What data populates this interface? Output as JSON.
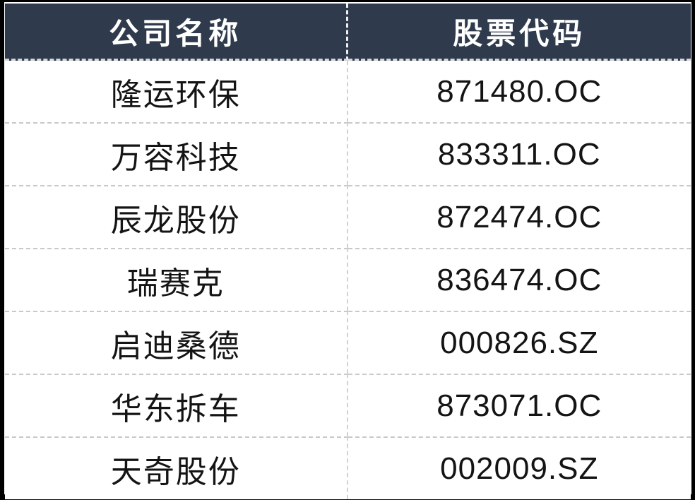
{
  "chart_data": {
    "type": "table",
    "columns": [
      "公司名称",
      "股票代码"
    ],
    "rows": [
      [
        "隆运环保",
        "871480.OC"
      ],
      [
        "万容科技",
        "833311.OC"
      ],
      [
        "辰龙股份",
        "872474.OC"
      ],
      [
        "瑞赛克",
        "836474.OC"
      ],
      [
        "启迪桑德",
        "000826.SZ"
      ],
      [
        "华东拆车",
        "873071.OC"
      ],
      [
        "天奇股份",
        "002009.SZ"
      ]
    ]
  },
  "colors": {
    "header_bg": "#2f3b4d",
    "header_text": "#ffffff",
    "body_text": "#141414",
    "row_divider": "#c9c9c9",
    "outer_border": "#000000"
  }
}
